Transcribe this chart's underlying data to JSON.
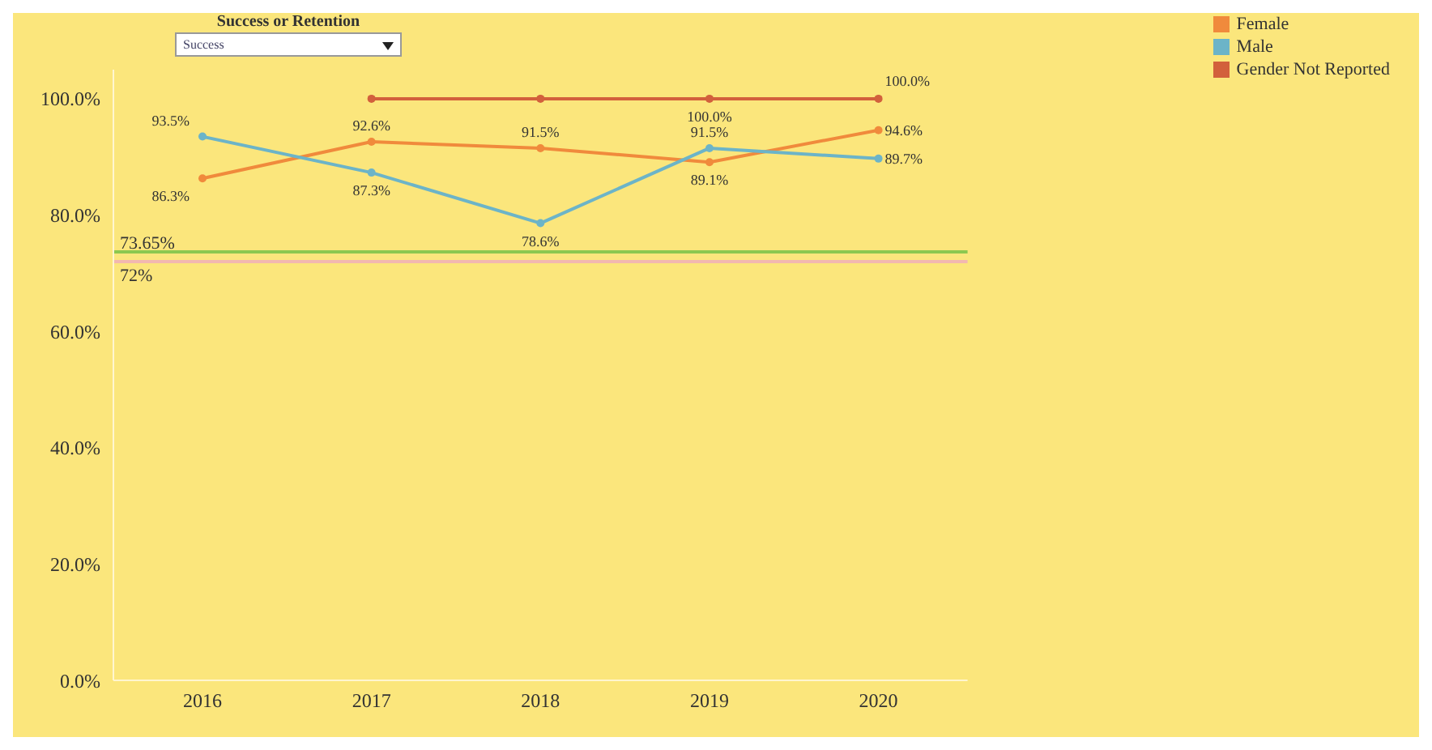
{
  "chart_data": {
    "type": "line",
    "categories": [
      "2016",
      "2017",
      "2018",
      "2019",
      "2020"
    ],
    "series": [
      {
        "name": "Female",
        "color": "#f08a3c",
        "values": [
          86.3,
          92.6,
          91.5,
          89.1,
          94.6
        ],
        "value_labels": [
          "86.3%",
          "92.6%",
          "91.5%",
          "89.1%",
          "94.6%"
        ]
      },
      {
        "name": "Male",
        "color": "#6cb4c8",
        "values": [
          93.5,
          87.3,
          78.6,
          91.5,
          89.7
        ],
        "value_labels": [
          "93.5%",
          "87.3%",
          "78.6%",
          "91.5%",
          "89.7%"
        ]
      },
      {
        "name": "Gender Not Reported",
        "color": "#d2603c",
        "values": [
          null,
          100,
          100,
          100,
          100
        ],
        "value_labels": [
          null,
          null,
          null,
          "100.0%",
          "100.0%"
        ]
      }
    ],
    "ylim": [
      0,
      105
    ],
    "yticks": [
      {
        "value": 0,
        "label": "0.0%"
      },
      {
        "value": 20,
        "label": "20.0%"
      },
      {
        "value": 40,
        "label": "40.0%"
      },
      {
        "value": 60,
        "label": "60.0%"
      },
      {
        "value": 80,
        "label": "80.0%"
      },
      {
        "value": 100,
        "label": "100.0%"
      }
    ],
    "ref_lines": [
      {
        "axis": "y",
        "value": 73.65,
        "label": "73.65%",
        "color": "#8cc850"
      },
      {
        "axis": "y",
        "value": 72,
        "label": "72%",
        "color": "#f2b8b0"
      }
    ],
    "annotations": [
      "Success or Retention",
      "Success"
    ],
    "legend": "top right",
    "grid": false,
    "marker": "circle"
  }
}
